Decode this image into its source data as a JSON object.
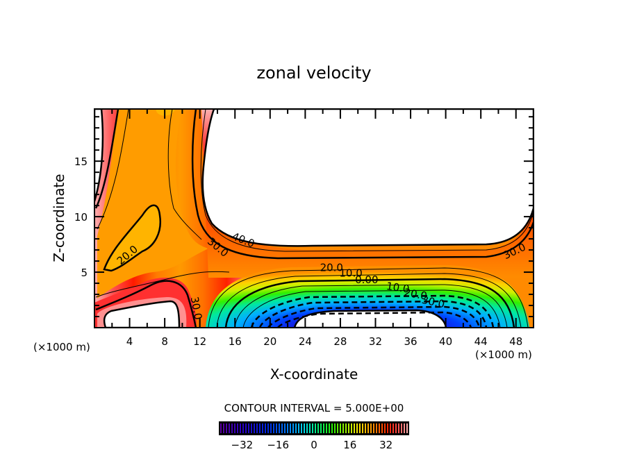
{
  "chart_data": {
    "type": "heatmap",
    "subtype": "filled-contour",
    "title": "zonal velocity",
    "xlabel": "X-coordinate",
    "ylabel": "Z-coordinate",
    "x_unit_label": "(×1000 m)",
    "x_unit_label_right": "(×1000 m)",
    "xlim": [
      0,
      50
    ],
    "ylim": [
      0,
      19.7
    ],
    "x_ticks": [
      4,
      8,
      12,
      16,
      20,
      24,
      28,
      32,
      36,
      40,
      44,
      48
    ],
    "x_tick_labels": [
      "4",
      "8",
      "12",
      "16",
      "20",
      "24",
      "28",
      "32",
      "36",
      "40",
      "44",
      "48"
    ],
    "x_minor_step": 2,
    "y_ticks": [
      5,
      10,
      15
    ],
    "y_tick_labels": [
      "5",
      "10",
      "15"
    ],
    "y_minor_step": 1,
    "contour_interval_text": "CONTOUR INTERVAL = 5.000E+00",
    "contour_interval": 5.0,
    "contour_labels": [
      {
        "text": "20.0",
        "x": 4.0,
        "z": 6.3,
        "angle": -40
      },
      {
        "text": "30.0",
        "x": 13.8,
        "z": 7.0,
        "angle": 40
      },
      {
        "text": "40.0",
        "x": 16.8,
        "z": 7.6,
        "angle": 22
      },
      {
        "text": "30.0",
        "x": 11.2,
        "z": 1.7,
        "angle": 80
      },
      {
        "text": "20.0",
        "x": 27.0,
        "z": 5.1,
        "angle": 0
      },
      {
        "text": "10.0",
        "x": 29.2,
        "z": 4.6,
        "angle": 0
      },
      {
        "text": "0.00",
        "x": 31.0,
        "z": 4.0,
        "angle": 0
      },
      {
        "text": "10.0",
        "x": 34.5,
        "z": 3.3,
        "angle": 8
      },
      {
        "text": "20.0",
        "x": 36.5,
        "z": 2.7,
        "angle": 10
      },
      {
        "text": "30.0",
        "x": 38.5,
        "z": 2.0,
        "angle": 12
      },
      {
        "text": "30.0",
        "x": 48.0,
        "z": 6.6,
        "angle": -25
      }
    ],
    "colorbar": {
      "range": [
        -42,
        42
      ],
      "ticks": [
        -32,
        -16,
        0,
        16,
        32
      ],
      "tick_labels": [
        "−32",
        "−16",
        "0",
        "16",
        "32"
      ],
      "colormap": "rainbow (purple-blue-cyan-green-yellow-orange-red-pink)"
    },
    "features": [
      {
        "name": "jet-core-left",
        "description": "positive maximum >40 above z≈11 at left edge and in upper-left column (white = off-scale)"
      },
      {
        "name": "upper-right",
        "description": "values >40 over x 13–49, z 7–19.7 (white)"
      },
      {
        "name": "reverse-flow",
        "description": "negative minimum below -40 near x 22–40, z 0–2 (white)"
      },
      {
        "name": "lower-left",
        "description": "values >40 near x 1–7, z 0–2 (white)"
      }
    ]
  }
}
